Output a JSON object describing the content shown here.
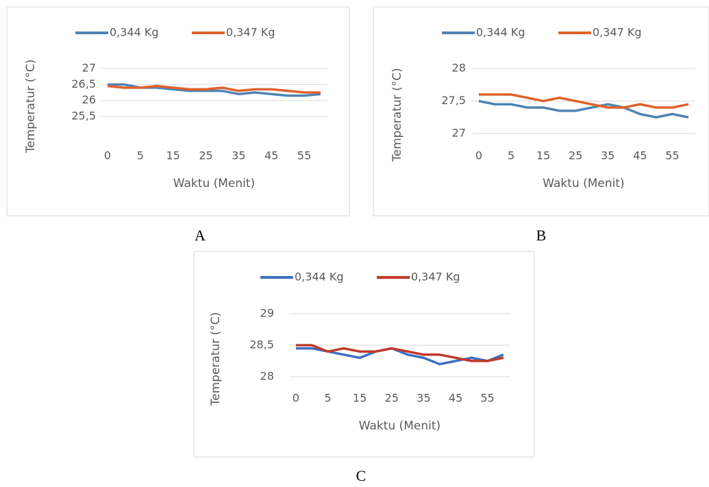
{
  "chart_data": [
    {
      "type": "line",
      "label": "A",
      "y_label": "Temperatur (°C)",
      "x_label": "Waktu (Menit)",
      "categories": [
        "0",
        null,
        "5",
        null,
        "15",
        null,
        "25",
        null,
        "35",
        null,
        "45",
        null,
        "55",
        null
      ],
      "series": [
        {
          "name": "0,344 Kg",
          "color": "#4f84b4",
          "values": [
            26.5,
            26.5,
            26.4,
            26.4,
            26.35,
            26.3,
            26.3,
            26.3,
            26.2,
            26.25,
            26.2,
            26.15,
            26.15,
            26.2
          ]
        },
        {
          "name": "0,347 Kg",
          "color": "#e0622c",
          "values": [
            26.45,
            26.4,
            26.4,
            26.45,
            26.4,
            26.35,
            26.35,
            26.4,
            26.3,
            26.35,
            26.35,
            26.3,
            26.25,
            26.25
          ]
        }
      ],
      "ylim": [
        25.5,
        27
      ],
      "yticks": [
        {
          "value": 25.5,
          "label": "25,5"
        },
        26,
        {
          "value": 26.5,
          "label": "26,5"
        },
        27
      ]
    },
    {
      "type": "line",
      "label": "B",
      "y_label": "Temperatur (°C)",
      "x_label": "Waktu (Menit)",
      "categories": [
        "0",
        null,
        "5",
        null,
        "15",
        null,
        "25",
        null,
        "35",
        null,
        "45",
        null,
        "55",
        null
      ],
      "series": [
        {
          "name": "0,344 Kg",
          "color": "#4f84b4",
          "values": [
            27.5,
            27.45,
            27.45,
            27.4,
            27.4,
            27.35,
            27.35,
            27.4,
            27.45,
            27.4,
            27.3,
            27.25,
            27.3,
            27.25
          ]
        },
        {
          "name": "0,347 Kg",
          "color": "#e0622c",
          "values": [
            27.6,
            27.6,
            27.6,
            27.55,
            27.5,
            27.55,
            27.5,
            27.45,
            27.4,
            27.4,
            27.45,
            27.4,
            27.4,
            27.45
          ]
        }
      ],
      "ylim": [
        27,
        28
      ],
      "yticks": [
        27,
        {
          "value": 27.5,
          "label": "27,5"
        },
        28
      ]
    },
    {
      "type": "line",
      "label": "C",
      "y_label": "Temperatur (°C)",
      "x_label": "Waktu (Menit)",
      "categories": [
        "0",
        null,
        "5",
        null,
        "15",
        null,
        "25",
        null,
        "35",
        null,
        "45",
        null,
        "55",
        null
      ],
      "series": [
        {
          "name": "0,344 Kg",
          "color": "#3d6fbf",
          "values": [
            28.45,
            28.45,
            28.4,
            28.35,
            28.3,
            28.4,
            28.45,
            28.35,
            28.3,
            28.2,
            28.25,
            28.3,
            28.25,
            28.35
          ]
        },
        {
          "name": "0,347 Kg",
          "color": "#c0392b",
          "values": [
            28.5,
            28.5,
            28.4,
            28.45,
            28.4,
            28.4,
            28.45,
            28.4,
            28.35,
            28.35,
            28.3,
            28.25,
            28.25,
            28.3
          ]
        }
      ],
      "ylim": [
        28,
        29
      ],
      "yticks": [
        28,
        {
          "value": 28.5,
          "label": "28,5"
        },
        29
      ]
    }
  ]
}
